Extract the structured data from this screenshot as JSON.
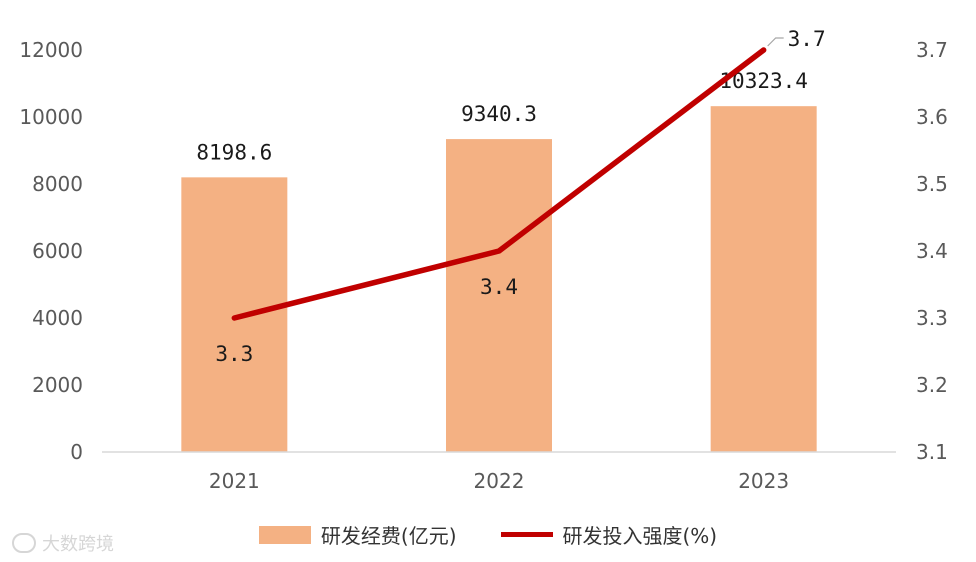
{
  "chart_data": {
    "type": "bar",
    "categories": [
      "2021",
      "2022",
      "2023"
    ],
    "series": [
      {
        "name": "研发经费(亿元)",
        "kind": "bar",
        "axis": "left",
        "values": [
          8198.6,
          9340.3,
          10323.4
        ],
        "labels": [
          "8198.6",
          "9340.3",
          "10323.4"
        ],
        "color": "#f4b183"
      },
      {
        "name": "研发投入强度(%)",
        "kind": "line",
        "axis": "right",
        "values": [
          3.3,
          3.4,
          3.7
        ],
        "labels": [
          "3.3",
          "3.4",
          "3.7"
        ],
        "color": "#c00000"
      }
    ],
    "y_left": {
      "min": 0,
      "max": 12000,
      "step": 2000,
      "ticks": [
        "0",
        "2000",
        "4000",
        "6000",
        "8000",
        "10000",
        "12000"
      ]
    },
    "y_right": {
      "min": 3.1,
      "max": 3.7,
      "step": 0.1,
      "ticks": [
        "3.1",
        "3.2",
        "3.3",
        "3.4",
        "3.5",
        "3.6",
        "3.7"
      ]
    },
    "legend_position": "bottom"
  },
  "legend": {
    "bar_label": "研发经费(亿元)",
    "line_label": "研发投入强度(%)"
  },
  "watermark": {
    "text": "大数跨境"
  }
}
